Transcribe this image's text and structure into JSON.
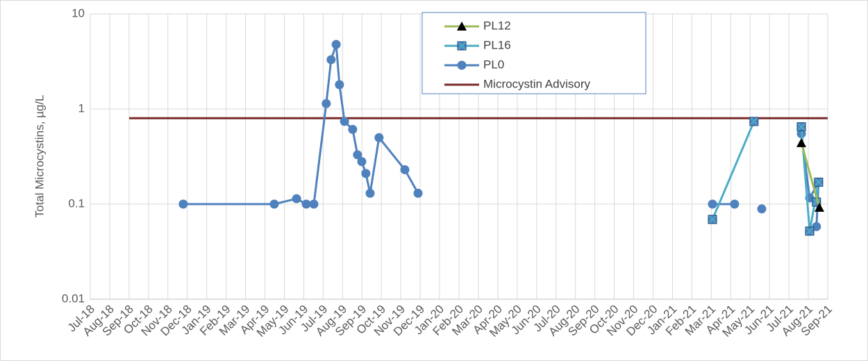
{
  "chart_data": {
    "type": "line",
    "y_label": "Total Microcystins, µg/L",
    "y_log": true,
    "grid": true,
    "legend_position": "top",
    "ylim": [
      0.01,
      10
    ],
    "yticks": [
      0.01,
      0.1,
      1,
      10
    ],
    "xlim": [
      0,
      38
    ],
    "xticks": [
      {
        "value": 0,
        "label": "Jul-18"
      },
      {
        "value": 1,
        "label": "Aug-18"
      },
      {
        "value": 2,
        "label": "Sep-18"
      },
      {
        "value": 3,
        "label": "Oct-18"
      },
      {
        "value": 4,
        "label": "Nov-18"
      },
      {
        "value": 5,
        "label": "Dec-18"
      },
      {
        "value": 6,
        "label": "Jan-19"
      },
      {
        "value": 7,
        "label": "Feb-19"
      },
      {
        "value": 8,
        "label": "Mar-19"
      },
      {
        "value": 9,
        "label": "Apr-19"
      },
      {
        "value": 10,
        "label": "May-19"
      },
      {
        "value": 11,
        "label": "Jun-19"
      },
      {
        "value": 12,
        "label": "Jul-19"
      },
      {
        "value": 13,
        "label": "Aug-19"
      },
      {
        "value": 14,
        "label": "Sep-19"
      },
      {
        "value": 15,
        "label": "Oct-19"
      },
      {
        "value": 16,
        "label": "Nov-19"
      },
      {
        "value": 17,
        "label": "Dec-19"
      },
      {
        "value": 18,
        "label": "Jan-20"
      },
      {
        "value": 19,
        "label": "Feb-20"
      },
      {
        "value": 20,
        "label": "Mar-20"
      },
      {
        "value": 21,
        "label": "Apr-20"
      },
      {
        "value": 22,
        "label": "May-20"
      },
      {
        "value": 23,
        "label": "Jun-20"
      },
      {
        "value": 24,
        "label": "Jul-20"
      },
      {
        "value": 25,
        "label": "Aug-20"
      },
      {
        "value": 26,
        "label": "Sep-20"
      },
      {
        "value": 27,
        "label": "Oct-20"
      },
      {
        "value": 28,
        "label": "Nov-20"
      },
      {
        "value": 29,
        "label": "Dec-20"
      },
      {
        "value": 30,
        "label": "Jan-21"
      },
      {
        "value": 31,
        "label": "Feb-21"
      },
      {
        "value": 32,
        "label": "Mar-21"
      },
      {
        "value": 33,
        "label": "Apr-21"
      },
      {
        "value": 34,
        "label": "May-21"
      },
      {
        "value": 35,
        "label": "Jun-21"
      },
      {
        "value": 36,
        "label": "Jul-21"
      },
      {
        "value": 37,
        "label": "Aug-21"
      },
      {
        "value": 38,
        "label": "Sep-21"
      }
    ],
    "series": [
      {
        "name": "PL12",
        "color": "#9bbb59",
        "marker": "triangle",
        "marker_color": "#000000",
        "x": [
          36.64,
          37.57
        ],
        "values": [
          0.44,
          0.092
        ]
      },
      {
        "name": "PL16",
        "color": "#4bacc6",
        "marker": "square-x",
        "marker_color": "#4f81bd",
        "x": [
          32.06,
          34.2,
          null,
          36.64,
          37.07,
          37.53,
          37.42
        ],
        "values": [
          0.069,
          0.74,
          null,
          0.65,
          0.052,
          0.17,
          0.105
        ]
      },
      {
        "name": "PL0",
        "color": "#4f81bd",
        "marker": "circle",
        "marker_color": "#4f81bd",
        "x": [
          4.79,
          9.48,
          10.63,
          11.13,
          11.52,
          12.16,
          12.41,
          12.67,
          12.84,
          13.1,
          13.52,
          13.77,
          13.99,
          14.2,
          14.42,
          14.88,
          16.21,
          16.89,
          null,
          32.06,
          33.2,
          null,
          34.6,
          null,
          36.64,
          37.07,
          37.53,
          37.42
        ],
        "values": [
          0.1,
          0.1,
          0.114,
          0.1,
          0.1,
          1.14,
          3.3,
          4.77,
          1.8,
          0.74,
          0.61,
          0.33,
          0.28,
          0.21,
          0.13,
          0.5,
          0.23,
          0.13,
          null,
          0.1,
          0.1,
          null,
          0.089,
          null,
          0.55,
          0.116,
          0.17,
          0.058
        ]
      },
      {
        "name": "Microcystin Advisory",
        "color": "#7b2a2a",
        "marker": "none",
        "marker_color": "#7b2a2a",
        "x": [
          2,
          38
        ],
        "values": [
          0.8,
          0.8
        ]
      }
    ]
  }
}
